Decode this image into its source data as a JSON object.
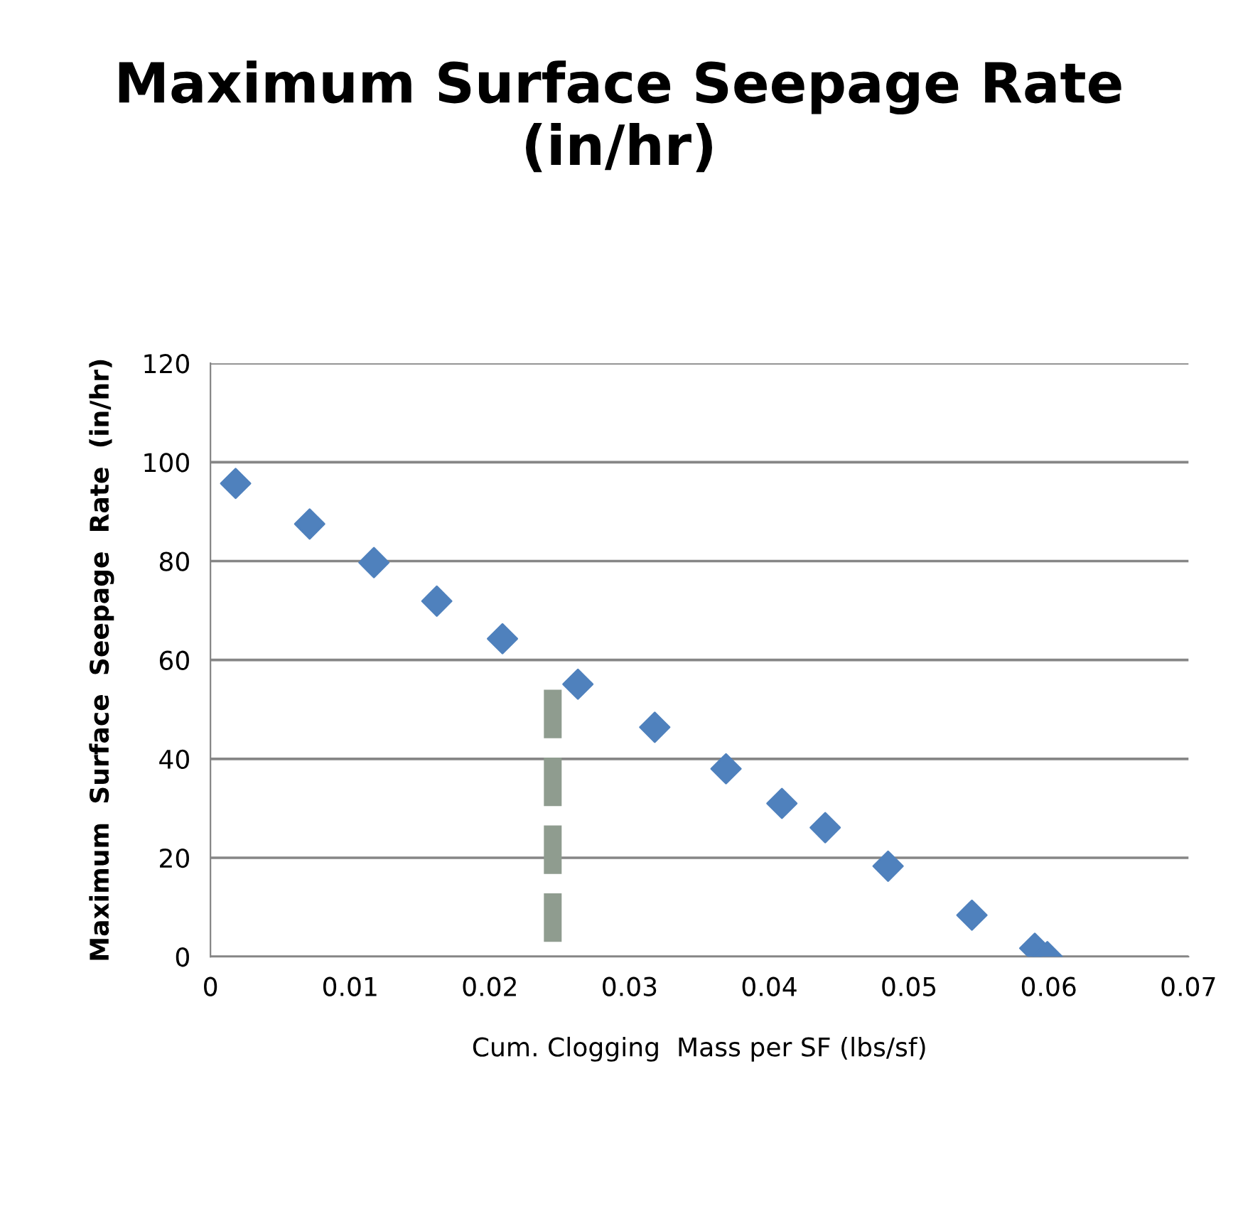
{
  "chart_data": {
    "type": "scatter",
    "title": "Maximum Surface Seepage Rate\n(in/hr)",
    "xlabel": "Cum. Clogging  Mass per SF (lbs/sf)",
    "ylabel": "Maximum  Surface  Seepage  Rate  (in/hr)",
    "xlim": [
      0,
      0.07
    ],
    "xticks": [
      0,
      0.01,
      0.02,
      0.03,
      0.04,
      0.05,
      0.06,
      0.07
    ],
    "ylim": [
      0,
      120
    ],
    "yticks": [
      0,
      20,
      40,
      60,
      80,
      100,
      120
    ],
    "grid": "y",
    "legend": false,
    "series": [
      {
        "color": "#4f81bd",
        "marker": "diamond",
        "x": [
          0.0018,
          0.0071,
          0.0117,
          0.0162,
          0.0209,
          0.0263,
          0.0318,
          0.0369,
          0.0409,
          0.044,
          0.0485,
          0.0545,
          0.059,
          0.0599
        ],
        "values": [
          95.7,
          87.5,
          79.7,
          71.9,
          64.3,
          55.1,
          46.4,
          38.0,
          31.0,
          26.1,
          18.3,
          8.4,
          1.7,
          0
        ]
      },
      {
        "type": "line",
        "color": "#8f9c8f",
        "line_style": "dashed",
        "x": [
          0.0245,
          0.0245
        ],
        "values": [
          3,
          54
        ]
      }
    ]
  }
}
